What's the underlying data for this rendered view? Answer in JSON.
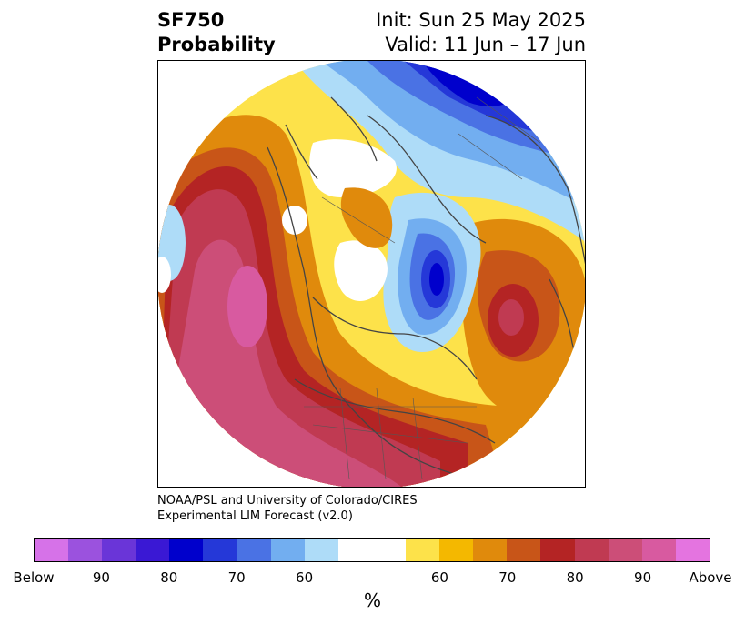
{
  "title": {
    "variable": "SF750",
    "subtitle": "Probability",
    "init": "Init: Sun 25 May 2025",
    "valid": "Valid: 11 Jun – 17 Jun"
  },
  "credit": {
    "line1": "NOAA/PSL and University of Colorado/CIRES",
    "line2": "Experimental LIM Forecast (v2.0)"
  },
  "colorbar": {
    "unit": "%",
    "colors": [
      "#d672e8",
      "#9b52de",
      "#6a35d8",
      "#3a18d4",
      "#0000cc",
      "#2538d8",
      "#4a72e4",
      "#72aef0",
      "#aedcf8",
      "#ffffff",
      "#ffffff",
      "#fde24a",
      "#f4b800",
      "#e08a0c",
      "#c85518",
      "#b42424",
      "#c03a52",
      "#cc4e78",
      "#d85aa0",
      "#e474e0"
    ],
    "tick_labels": [
      "Below",
      "90",
      "80",
      "70",
      "60",
      "60",
      "70",
      "80",
      "90",
      "Above"
    ]
  },
  "map": {
    "projection": "north-polar-stereographic",
    "regions": [
      "North America",
      "Arctic",
      "Eurasia"
    ]
  }
}
